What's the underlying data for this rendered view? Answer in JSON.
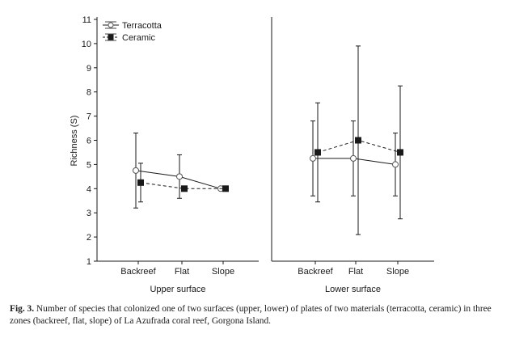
{
  "chart_data": {
    "type": "line",
    "ylabel": "Richness (S)",
    "ylim": [
      1,
      11
    ],
    "yticks": [
      "1",
      "2",
      "3",
      "4",
      "5",
      "6",
      "7",
      "8",
      "9",
      "10",
      "11"
    ],
    "categories": [
      "Backreef",
      "Flat",
      "Slope"
    ],
    "legend": {
      "placement": "top-left",
      "entries": [
        "Terracotta",
        "Ceramic"
      ]
    },
    "error_bars": true,
    "panels": [
      {
        "xlabel": "Upper surface",
        "series": [
          {
            "name": "Terracotta",
            "marker": "open-circle",
            "line": "solid",
            "values": [
              4.75,
              4.5,
              4.0
            ],
            "lower": [
              3.2,
              3.6,
              4.0
            ],
            "upper": [
              6.3,
              5.4,
              4.0
            ]
          },
          {
            "name": "Ceramic",
            "marker": "filled-square",
            "line": "dashed",
            "values": [
              4.25,
              4.0,
              4.0
            ],
            "lower": [
              3.45,
              4.0,
              4.0
            ],
            "upper": [
              5.05,
              4.0,
              4.0
            ]
          }
        ]
      },
      {
        "xlabel": "Lower surface",
        "series": [
          {
            "name": "Terracotta",
            "marker": "open-circle",
            "line": "solid",
            "values": [
              5.25,
              5.25,
              5.0
            ],
            "lower": [
              3.7,
              3.7,
              3.7
            ],
            "upper": [
              6.8,
              6.8,
              6.3
            ]
          },
          {
            "name": "Ceramic",
            "marker": "filled-square",
            "line": "dashed",
            "values": [
              5.5,
              6.0,
              5.5
            ],
            "lower": [
              3.45,
              2.1,
              2.75
            ],
            "upper": [
              7.55,
              9.9,
              8.25
            ]
          }
        ]
      }
    ]
  },
  "caption": {
    "label": "Fig. 3.",
    "text": " Number of species that colonized one of two surfaces (upper, lower) of plates of two materials (terracotta, ceramic) in three zones (backreef, flat, slope) of La Azufrada coral reef, Gorgona Island."
  }
}
